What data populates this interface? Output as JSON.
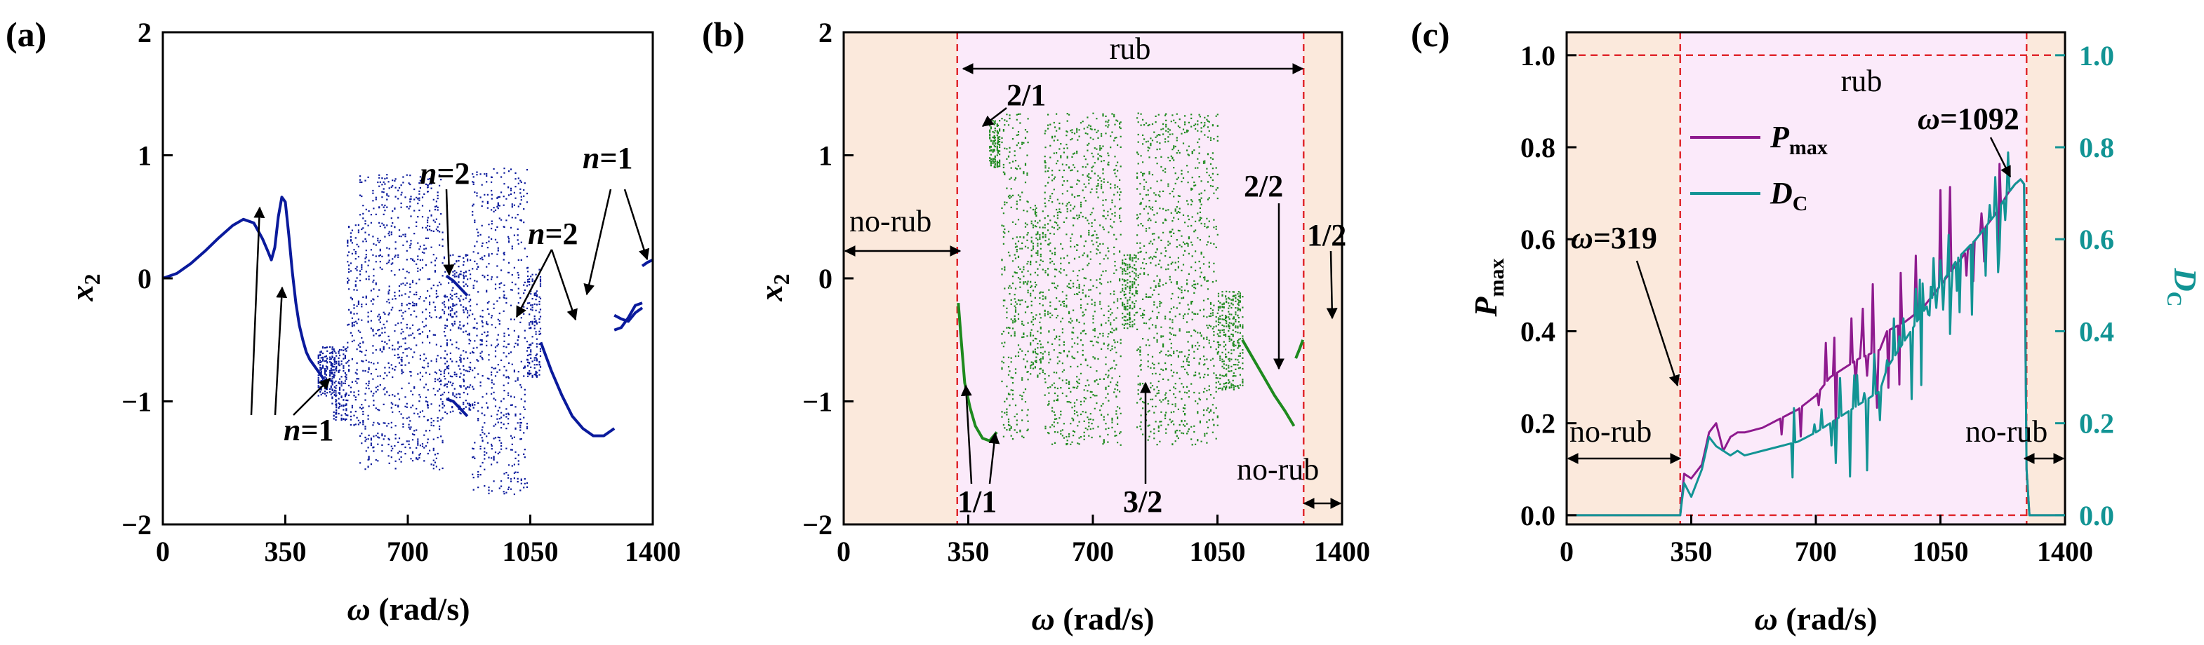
{
  "chart_data": [
    {
      "panel_label": "(a)",
      "type": "scatter",
      "xlabel_symbol": "ω",
      "xlabel_unit": "(rad/s)",
      "ylabel_symbol": "x",
      "ylabel_sub": "2",
      "xlim": [
        0,
        1400
      ],
      "ylim": [
        -2,
        2
      ],
      "xticks": [
        0,
        350,
        700,
        1050,
        1400
      ],
      "yticks": [
        -2,
        -1,
        0,
        1,
        2
      ],
      "color": "#0a1a9c",
      "periodic_branches": [
        {
          "x": [
            0,
            40,
            80,
            120,
            160,
            200,
            230,
            260,
            285,
            300,
            310,
            320,
            330,
            340,
            350,
            360,
            370,
            380,
            390,
            400,
            410,
            420,
            440,
            460
          ],
          "y": [
            0.0,
            0.04,
            0.12,
            0.22,
            0.33,
            0.43,
            0.48,
            0.45,
            0.32,
            0.22,
            0.15,
            0.25,
            0.5,
            0.66,
            0.62,
            0.35,
            0.05,
            -0.2,
            -0.38,
            -0.5,
            -0.6,
            -0.66,
            -0.74,
            -0.82
          ]
        },
        {
          "x": [
            810,
            830,
            850,
            870
          ],
          "y": [
            0.02,
            -0.02,
            -0.08,
            -0.14
          ]
        },
        {
          "x": [
            810,
            830,
            850,
            870
          ],
          "y": [
            -0.98,
            -1.0,
            -1.06,
            -1.12
          ]
        },
        {
          "x": [
            1080,
            1110,
            1140,
            1170,
            1200,
            1230,
            1260,
            1290
          ],
          "y": [
            -0.52,
            -0.75,
            -0.95,
            -1.12,
            -1.22,
            -1.28,
            -1.28,
            -1.22
          ]
        },
        {
          "x": [
            1290,
            1310,
            1330,
            1350,
            1370
          ],
          "y": [
            -0.3,
            -0.33,
            -0.35,
            -0.28,
            -0.24
          ]
        },
        {
          "x": [
            1290,
            1310,
            1330,
            1350,
            1370
          ],
          "y": [
            -0.42,
            -0.4,
            -0.32,
            -0.22,
            -0.2
          ]
        },
        {
          "x": [
            1370,
            1385,
            1400
          ],
          "y": [
            0.1,
            0.13,
            0.15
          ]
        }
      ],
      "chaotic_bands": [
        {
          "x": [
            440,
            490
          ],
          "y": [
            -0.95,
            -0.55
          ]
        },
        {
          "x": [
            480,
            525
          ],
          "y": [
            -1.15,
            -0.55
          ]
        },
        {
          "x": [
            525,
            560
          ],
          "y": [
            -1.25,
            0.45
          ]
        },
        {
          "x": [
            560,
            800
          ],
          "y": [
            -1.55,
            0.85
          ]
        },
        {
          "x": [
            800,
            880
          ],
          "y": [
            -1.1,
            0.2
          ]
        },
        {
          "x": [
            880,
            1040
          ],
          "y": [
            -1.75,
            0.9
          ]
        },
        {
          "x": [
            1040,
            1080
          ],
          "y": [
            -0.8,
            0.1
          ]
        }
      ],
      "annotations": [
        {
          "text_pre": "n",
          "text_post": "=1",
          "xy": [
            440,
            -0.95
          ]
        },
        {
          "text_pre": "n",
          "text_post": "=2",
          "xy": [
            830,
            0.0
          ]
        },
        {
          "text_pre": "n",
          "text_post": "=2",
          "xy": [
            1290,
            -0.35
          ]
        },
        {
          "text_pre": "n",
          "text_post": "=1",
          "xy": [
            1385,
            0.13
          ]
        }
      ]
    },
    {
      "panel_label": "(b)",
      "type": "scatter",
      "xlabel_symbol": "ω",
      "xlabel_unit": "(rad/s)",
      "ylabel_symbol": "x",
      "ylabel_sub": "2",
      "xlim": [
        0,
        1400
      ],
      "ylim": [
        -2,
        2
      ],
      "xticks": [
        0,
        350,
        700,
        1050,
        1400
      ],
      "yticks": [
        -2,
        -1,
        0,
        1,
        2
      ],
      "color": "#1e8a1e",
      "rub_region": [
        319,
        1292
      ],
      "region_colors": {
        "no_rub": "#fbe9dc",
        "rub": "#fbeafa",
        "boundary": "#e0282d"
      },
      "chaotic_bands": [
        {
          "x": [
            405,
            440
          ],
          "y": [
            0.9,
            1.3
          ]
        },
        {
          "x": [
            440,
            520
          ],
          "y": [
            -1.3,
            1.35
          ]
        },
        {
          "x": [
            520,
            560
          ],
          "y": [
            -0.8,
            0.6
          ]
        },
        {
          "x": [
            560,
            780
          ],
          "y": [
            -1.35,
            1.35
          ]
        },
        {
          "x": [
            780,
            820
          ],
          "y": [
            -0.4,
            0.2
          ]
        },
        {
          "x": [
            820,
            1050
          ],
          "y": [
            -1.35,
            1.35
          ]
        },
        {
          "x": [
            1050,
            1120
          ],
          "y": [
            -0.9,
            -0.1
          ]
        }
      ],
      "periodic_branches": [
        {
          "x": [
            322,
            330,
            340,
            355,
            370,
            390,
            410,
            430
          ],
          "y": [
            -0.2,
            -0.5,
            -0.85,
            -1.05,
            -1.2,
            -1.3,
            -1.32,
            -1.25
          ]
        },
        {
          "x": [
            1120,
            1150,
            1180,
            1210,
            1240,
            1265
          ],
          "y": [
            -0.5,
            -0.65,
            -0.8,
            -0.95,
            -1.08,
            -1.2
          ]
        },
        {
          "x": [
            1270,
            1280,
            1290
          ],
          "y": [
            -0.65,
            -0.58,
            -0.5
          ]
        }
      ],
      "annotations": {
        "rub": "rub",
        "no_rub_left": "no-rub",
        "no_rub_right": "no-rub",
        "ratios": [
          "2/1",
          "1/1",
          "3/2",
          "2/2",
          "1/2"
        ]
      }
    },
    {
      "panel_label": "(c)",
      "type": "line",
      "xlabel_symbol": "ω",
      "xlabel_unit": "(rad/s)",
      "ylabel_left_symbol": "P",
      "ylabel_left_sub": "max",
      "ylabel_right_symbol": "D",
      "ylabel_right_sub": "C",
      "xlim": [
        0,
        1400
      ],
      "ylim_left": [
        -0.02,
        1.05
      ],
      "ylim_right": [
        -0.02,
        1.05
      ],
      "xticks": [
        0,
        350,
        700,
        1050,
        1400
      ],
      "yticks_left": [
        "0.0",
        "0.2",
        "0.4",
        "0.6",
        "0.8",
        "1.0"
      ],
      "yticks_right": [
        "0.0",
        "0.2",
        "0.4",
        "0.6",
        "0.8",
        "1.0"
      ],
      "rub_region": [
        319,
        1292
      ],
      "reference_lines_y": [
        0.0,
        1.0
      ],
      "region_colors": {
        "no_rub": "#fbe9dc",
        "rub": "#fbeafa",
        "boundary": "#e0282d"
      },
      "series": [
        {
          "name_sym": "P",
          "name_sub": "max",
          "color": "#8e1a8e",
          "x": [
            0,
            319,
            330,
            350,
            380,
            400,
            420,
            440,
            460,
            480,
            500,
            550,
            600,
            650,
            700,
            740,
            760,
            780,
            820,
            880,
            900,
            950,
            1000,
            1050,
            1100,
            1150,
            1200,
            1240,
            1260,
            1275,
            1285,
            1292,
            1300,
            1400
          ],
          "y": [
            0,
            0,
            0.09,
            0.08,
            0.11,
            0.18,
            0.2,
            0.14,
            0.17,
            0.18,
            0.18,
            0.19,
            0.21,
            0.23,
            0.26,
            0.3,
            0.31,
            0.32,
            0.34,
            0.36,
            0.4,
            0.42,
            0.45,
            0.5,
            0.55,
            0.6,
            0.65,
            0.7,
            0.72,
            0.73,
            0.72,
            0.1,
            0,
            0
          ]
        },
        {
          "name_sym": "D",
          "name_sub": "C",
          "color": "#129494",
          "x": [
            0,
            319,
            330,
            350,
            380,
            400,
            420,
            440,
            460,
            480,
            500,
            550,
            600,
            650,
            700,
            740,
            760,
            780,
            820,
            880,
            900,
            950,
            1000,
            1050,
            1100,
            1150,
            1200,
            1240,
            1260,
            1275,
            1285,
            1292,
            1300,
            1400
          ],
          "y": [
            0,
            0,
            0.07,
            0.04,
            0.1,
            0.17,
            0.15,
            0.14,
            0.13,
            0.14,
            0.13,
            0.14,
            0.15,
            0.16,
            0.18,
            0.2,
            0.21,
            0.22,
            0.24,
            0.27,
            0.32,
            0.38,
            0.44,
            0.5,
            0.56,
            0.6,
            0.65,
            0.7,
            0.72,
            0.73,
            0.72,
            0.1,
            0,
            0
          ]
        }
      ],
      "annotations": {
        "rub": "rub",
        "no_rub_left": "no-rub",
        "no_rub_right": "no-rub",
        "omega_319": "=319",
        "omega_1092": "=1092",
        "omega_symbol": "ω"
      }
    }
  ]
}
